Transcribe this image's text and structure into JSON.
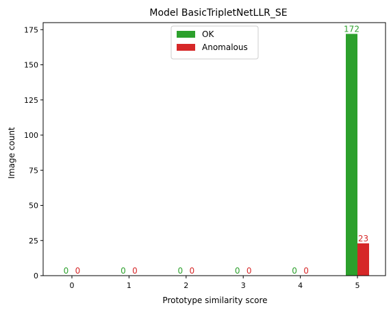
{
  "chart_data": {
    "type": "bar",
    "title": "Model BasicTripletNetLLR_SE",
    "xlabel": "Prototype similarity score",
    "ylabel": "Image count",
    "categories": [
      "0",
      "1",
      "2",
      "3",
      "4",
      "5"
    ],
    "ylim": [
      0,
      180
    ],
    "yticks": [
      0,
      25,
      50,
      75,
      100,
      125,
      150,
      175
    ],
    "series": [
      {
        "name": "OK",
        "color": "#2ca02c",
        "values": [
          0,
          0,
          0,
          0,
          0,
          172
        ]
      },
      {
        "name": "Anomalous",
        "color": "#d62728",
        "values": [
          0,
          0,
          0,
          0,
          0,
          23
        ]
      }
    ],
    "legend": "upper-center",
    "grid": false
  }
}
